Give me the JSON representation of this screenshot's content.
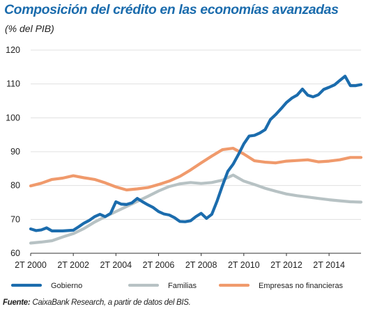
{
  "title": "Composición del crédito en las economías avanzadas",
  "subtitle": "(% del PIB)",
  "source": {
    "label": "Fuente:",
    "text": " CaixaBank Research, a partir de datos del BIS."
  },
  "chart_data": {
    "type": "line",
    "xlim": [
      2000,
      2015.5
    ],
    "ylim": [
      60,
      120
    ],
    "yticks": [
      60,
      70,
      80,
      90,
      100,
      110,
      120
    ],
    "xticks": [
      {
        "value": 2000,
        "label": "2T 2000"
      },
      {
        "value": 2002,
        "label": "2T 2002"
      },
      {
        "value": 2004,
        "label": "2T 2004"
      },
      {
        "value": 2006,
        "label": "2T 2006"
      },
      {
        "value": 2008,
        "label": "2T 2008"
      },
      {
        "value": 2010,
        "label": "2T 2010"
      },
      {
        "value": 2012,
        "label": "2T 2012"
      },
      {
        "value": 2014,
        "label": "2T 2014"
      }
    ],
    "grid": "horizontal",
    "legend_position": "bottom",
    "series": [
      {
        "name": "Gobierno",
        "color": "#1b6cad",
        "points": [
          [
            2000.0,
            67.2
          ],
          [
            2000.25,
            66.7
          ],
          [
            2000.5,
            66.9
          ],
          [
            2000.75,
            67.5
          ],
          [
            2001.0,
            66.6
          ],
          [
            2001.5,
            66.6
          ],
          [
            2002.0,
            66.8
          ],
          [
            2002.25,
            67.8
          ],
          [
            2002.5,
            68.9
          ],
          [
            2002.75,
            69.7
          ],
          [
            2003.0,
            70.8
          ],
          [
            2003.25,
            71.5
          ],
          [
            2003.5,
            70.8
          ],
          [
            2003.75,
            71.8
          ],
          [
            2004.0,
            75.2
          ],
          [
            2004.25,
            74.5
          ],
          [
            2004.5,
            74.4
          ],
          [
            2004.75,
            74.9
          ],
          [
            2005.0,
            76.2
          ],
          [
            2005.25,
            75.2
          ],
          [
            2005.5,
            74.3
          ],
          [
            2005.75,
            73.5
          ],
          [
            2006.0,
            72.3
          ],
          [
            2006.25,
            71.6
          ],
          [
            2006.5,
            71.3
          ],
          [
            2006.75,
            70.5
          ],
          [
            2007.0,
            69.4
          ],
          [
            2007.25,
            69.3
          ],
          [
            2007.5,
            69.6
          ],
          [
            2007.75,
            70.8
          ],
          [
            2008.0,
            71.8
          ],
          [
            2008.25,
            70.3
          ],
          [
            2008.5,
            71.5
          ],
          [
            2008.75,
            75.5
          ],
          [
            2009.0,
            80.0
          ],
          [
            2009.25,
            84.2
          ],
          [
            2009.5,
            86.3
          ],
          [
            2009.75,
            89.2
          ],
          [
            2010.0,
            92.3
          ],
          [
            2010.25,
            94.6
          ],
          [
            2010.5,
            94.8
          ],
          [
            2010.75,
            95.5
          ],
          [
            2011.0,
            96.5
          ],
          [
            2011.25,
            99.5
          ],
          [
            2011.5,
            101.0
          ],
          [
            2011.75,
            102.7
          ],
          [
            2012.0,
            104.5
          ],
          [
            2012.25,
            105.8
          ],
          [
            2012.5,
            106.7
          ],
          [
            2012.75,
            108.5
          ],
          [
            2013.0,
            106.7
          ],
          [
            2013.25,
            106.2
          ],
          [
            2013.5,
            106.8
          ],
          [
            2013.75,
            108.4
          ],
          [
            2014.0,
            109.0
          ],
          [
            2014.25,
            109.7
          ],
          [
            2014.5,
            111.0
          ],
          [
            2014.75,
            112.3
          ],
          [
            2015.0,
            109.5
          ],
          [
            2015.25,
            109.5
          ],
          [
            2015.5,
            109.8
          ]
        ]
      },
      {
        "name": "Familias",
        "color": "#b7c2c4",
        "points": [
          [
            2000.0,
            63.0
          ],
          [
            2000.5,
            63.3
          ],
          [
            2001.0,
            63.7
          ],
          [
            2001.5,
            64.8
          ],
          [
            2002.0,
            65.8
          ],
          [
            2002.5,
            67.3
          ],
          [
            2003.0,
            69.2
          ],
          [
            2003.5,
            70.8
          ],
          [
            2004.0,
            72.3
          ],
          [
            2004.5,
            73.8
          ],
          [
            2005.0,
            75.3
          ],
          [
            2005.5,
            76.8
          ],
          [
            2006.0,
            78.4
          ],
          [
            2006.5,
            79.7
          ],
          [
            2007.0,
            80.5
          ],
          [
            2007.5,
            80.9
          ],
          [
            2008.0,
            80.6
          ],
          [
            2008.5,
            80.9
          ],
          [
            2009.0,
            81.6
          ],
          [
            2009.5,
            83.1
          ],
          [
            2010.0,
            81.3
          ],
          [
            2010.5,
            80.3
          ],
          [
            2011.0,
            79.2
          ],
          [
            2011.5,
            78.3
          ],
          [
            2012.0,
            77.5
          ],
          [
            2012.5,
            77.0
          ],
          [
            2013.0,
            76.6
          ],
          [
            2013.5,
            76.2
          ],
          [
            2014.0,
            75.8
          ],
          [
            2014.5,
            75.5
          ],
          [
            2015.0,
            75.2
          ],
          [
            2015.5,
            75.1
          ]
        ]
      },
      {
        "name": "Empresas no financieras",
        "color": "#f09a6c",
        "points": [
          [
            2000.0,
            79.9
          ],
          [
            2000.5,
            80.7
          ],
          [
            2001.0,
            81.8
          ],
          [
            2001.5,
            82.2
          ],
          [
            2002.0,
            82.9
          ],
          [
            2002.5,
            82.3
          ],
          [
            2003.0,
            81.8
          ],
          [
            2003.5,
            80.8
          ],
          [
            2004.0,
            79.6
          ],
          [
            2004.5,
            78.7
          ],
          [
            2005.0,
            79.0
          ],
          [
            2005.5,
            79.4
          ],
          [
            2006.0,
            80.3
          ],
          [
            2006.5,
            81.3
          ],
          [
            2007.0,
            82.7
          ],
          [
            2007.5,
            84.6
          ],
          [
            2008.0,
            86.7
          ],
          [
            2008.5,
            88.7
          ],
          [
            2009.0,
            90.6
          ],
          [
            2009.5,
            91.0
          ],
          [
            2010.0,
            89.3
          ],
          [
            2010.5,
            87.3
          ],
          [
            2011.0,
            86.9
          ],
          [
            2011.5,
            86.7
          ],
          [
            2012.0,
            87.2
          ],
          [
            2012.5,
            87.4
          ],
          [
            2013.0,
            87.6
          ],
          [
            2013.5,
            87.0
          ],
          [
            2014.0,
            87.2
          ],
          [
            2014.5,
            87.6
          ],
          [
            2015.0,
            88.3
          ],
          [
            2015.5,
            88.3
          ]
        ]
      }
    ]
  }
}
